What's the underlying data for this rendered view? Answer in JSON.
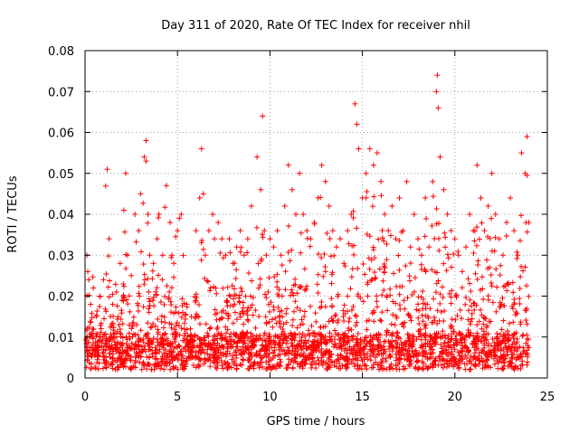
{
  "chart_data": {
    "type": "scatter",
    "title": "Day 311 of 2020, Rate Of TEC Index for receiver nhil",
    "xlabel": "GPS time / hours",
    "ylabel": "ROTI / TECUs",
    "xlim": [
      0,
      25
    ],
    "ylim": [
      0,
      0.08
    ],
    "x_ticks": [
      "0",
      "5",
      "10",
      "15",
      "20",
      "25"
    ],
    "y_ticks": [
      "0",
      "0.01",
      "0.02",
      "0.03",
      "0.04",
      "0.05",
      "0.06",
      "0.07",
      "0.08"
    ],
    "x_tick_values": [
      0,
      5,
      10,
      15,
      20,
      25
    ],
    "y_tick_values": [
      0,
      0.01,
      0.02,
      0.03,
      0.04,
      0.05,
      0.06,
      0.07,
      0.08
    ],
    "grid": true,
    "marker": "plus",
    "marker_color": "#ff0000",
    "series": [
      {
        "x": [
          0.1,
          0.15,
          0.2,
          0.3,
          0.45,
          0.6,
          0.8,
          1.0,
          1.2,
          1.3,
          1.5,
          1.7,
          1.9,
          2.1,
          2.2,
          2.3,
          2.5,
          2.7,
          2.9,
          3.0,
          3.2,
          3.3,
          3.3,
          3.4,
          3.5,
          3.7,
          3.9,
          4.0,
          4.2,
          4.4,
          4.6,
          4.7,
          4.8,
          5.0,
          5.2,
          5.5,
          5.7,
          6.0,
          6.2,
          6.3,
          6.4,
          6.5,
          6.7,
          6.9,
          7.0,
          7.2,
          7.4,
          7.6,
          7.8,
          8.0,
          8.2,
          8.4,
          8.6,
          8.8,
          9.0,
          9.3,
          9.5,
          9.6,
          9.7,
          9.8,
          10.0,
          10.2,
          10.4,
          10.6,
          10.8,
          11.0,
          11.2,
          11.4,
          11.6,
          11.8,
          12.0,
          12.2,
          12.4,
          12.6,
          12.8,
          13.0,
          13.2,
          13.4,
          13.6,
          13.8,
          14.0,
          14.2,
          14.4,
          14.6,
          14.7,
          14.8,
          15.0,
          15.2,
          15.4,
          15.6,
          15.8,
          16.0,
          16.2,
          16.4,
          16.6,
          16.8,
          17.0,
          17.2,
          17.4,
          17.6,
          17.8,
          18.0,
          18.2,
          18.4,
          18.6,
          18.8,
          19.0,
          19.05,
          19.1,
          19.2,
          19.4,
          19.6,
          19.8,
          20.0,
          20.2,
          20.4,
          20.6,
          20.8,
          21.0,
          21.2,
          21.4,
          21.6,
          21.8,
          22.0,
          22.2,
          22.4,
          22.6,
          22.8,
          23.0,
          23.2,
          23.4,
          23.6,
          23.8,
          23.9,
          24.0
        ],
        "y": [
          0.03,
          0.026,
          0.024,
          0.018,
          0.022,
          0.015,
          0.02,
          0.024,
          0.051,
          0.034,
          0.018,
          0.021,
          0.028,
          0.041,
          0.05,
          0.03,
          0.025,
          0.04,
          0.036,
          0.045,
          0.054,
          0.058,
          0.053,
          0.04,
          0.03,
          0.028,
          0.034,
          0.04,
          0.03,
          0.047,
          0.038,
          0.03,
          0.028,
          0.036,
          0.04,
          0.018,
          0.012,
          0.036,
          0.044,
          0.056,
          0.045,
          0.03,
          0.036,
          0.04,
          0.034,
          0.038,
          0.034,
          0.03,
          0.034,
          0.028,
          0.032,
          0.036,
          0.03,
          0.034,
          0.042,
          0.054,
          0.046,
          0.064,
          0.036,
          0.03,
          0.034,
          0.032,
          0.036,
          0.03,
          0.042,
          0.052,
          0.046,
          0.04,
          0.05,
          0.04,
          0.036,
          0.034,
          0.038,
          0.044,
          0.052,
          0.048,
          0.042,
          0.036,
          0.032,
          0.034,
          0.028,
          0.036,
          0.04,
          0.067,
          0.062,
          0.056,
          0.044,
          0.05,
          0.056,
          0.052,
          0.055,
          0.048,
          0.04,
          0.036,
          0.042,
          0.034,
          0.044,
          0.036,
          0.048,
          0.032,
          0.04,
          0.034,
          0.03,
          0.044,
          0.032,
          0.048,
          0.07,
          0.074,
          0.066,
          0.054,
          0.046,
          0.04,
          0.036,
          0.034,
          0.03,
          0.026,
          0.032,
          0.04,
          0.036,
          0.052,
          0.044,
          0.036,
          0.042,
          0.05,
          0.04,
          0.034,
          0.03,
          0.038,
          0.044,
          0.036,
          0.03,
          0.055,
          0.05,
          0.059,
          0.038
        ]
      }
    ]
  }
}
